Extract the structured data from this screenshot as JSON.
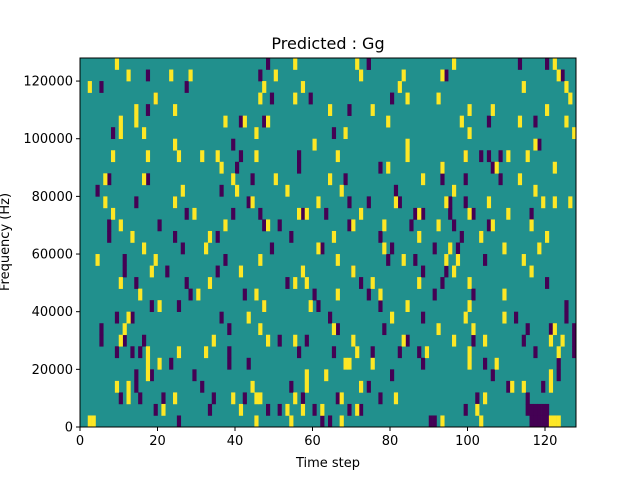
{
  "chart_data": {
    "type": "heatmap",
    "title": "Predicted : Gg",
    "xlabel": "Time step",
    "ylabel": "Frequency (Hz)",
    "xlim": [
      0,
      128
    ],
    "ylim": [
      0,
      128000
    ],
    "x_ticks": [
      0,
      20,
      40,
      60,
      80,
      100,
      120
    ],
    "x_tick_labels": [
      "0",
      "20",
      "40",
      "60",
      "80",
      "100",
      "120"
    ],
    "y_ticks": [
      0,
      20000,
      40000,
      60000,
      80000,
      100000,
      120000
    ],
    "y_tick_labels": [
      "0",
      "20000",
      "40000",
      "60000",
      "80000",
      "100000",
      "120000"
    ],
    "grid": false,
    "legend": "none",
    "rows": 32,
    "cols": 128,
    "colors": {
      "background": "#21908d",
      "low": "#440154",
      "high": "#fde725"
    },
    "low_cells": [
      [
        0,
        25
      ],
      [
        0,
        62
      ],
      [
        0,
        64
      ],
      [
        0,
        90
      ],
      [
        0,
        91
      ],
      [
        0,
        116
      ],
      [
        0,
        117
      ],
      [
        0,
        118
      ],
      [
        0,
        119
      ],
      [
        0,
        120
      ],
      [
        1,
        19
      ],
      [
        1,
        33
      ],
      [
        1,
        48
      ],
      [
        1,
        51
      ],
      [
        1,
        60
      ],
      [
        1,
        69
      ],
      [
        1,
        72
      ],
      [
        1,
        99
      ],
      [
        1,
        115
      ],
      [
        1,
        116
      ],
      [
        1,
        117
      ],
      [
        1,
        118
      ],
      [
        1,
        119
      ],
      [
        1,
        120
      ],
      [
        2,
        10
      ],
      [
        2,
        15
      ],
      [
        2,
        21
      ],
      [
        2,
        34
      ],
      [
        2,
        42
      ],
      [
        2,
        57
      ],
      [
        2,
        66
      ],
      [
        2,
        77
      ],
      [
        2,
        102
      ],
      [
        2,
        115
      ],
      [
        3,
        14
      ],
      [
        3,
        31
      ],
      [
        3,
        54
      ],
      [
        3,
        74
      ],
      [
        3,
        110
      ],
      [
        3,
        119
      ],
      [
        4,
        14
      ],
      [
        4,
        18
      ],
      [
        4,
        29
      ],
      [
        4,
        80
      ],
      [
        4,
        106
      ],
      [
        4,
        123
      ],
      [
        5,
        23
      ],
      [
        5,
        38
      ],
      [
        5,
        43
      ],
      [
        5,
        88
      ],
      [
        5,
        104
      ],
      [
        5,
        123
      ],
      [
        6,
        9
      ],
      [
        6,
        13
      ],
      [
        6,
        15
      ],
      [
        6,
        38
      ],
      [
        6,
        56
      ],
      [
        6,
        65
      ],
      [
        6,
        75
      ],
      [
        6,
        82
      ],
      [
        6,
        87
      ],
      [
        6,
        117
      ],
      [
        6,
        127
      ],
      [
        7,
        5
      ],
      [
        7,
        11
      ],
      [
        7,
        16
      ],
      [
        7,
        51
      ],
      [
        7,
        58
      ],
      [
        7,
        84
      ],
      [
        7,
        101
      ],
      [
        7,
        114
      ],
      [
        7,
        127
      ],
      [
        8,
        5
      ],
      [
        8,
        38
      ],
      [
        8,
        66
      ],
      [
        8,
        78
      ],
      [
        8,
        115
      ],
      [
        8,
        121
      ],
      [
        8,
        127
      ],
      [
        9,
        9
      ],
      [
        9,
        13
      ],
      [
        9,
        36
      ],
      [
        9,
        64
      ],
      [
        9,
        88
      ],
      [
        9,
        112
      ],
      [
        9,
        125
      ],
      [
        10,
        18
      ],
      [
        10,
        25
      ],
      [
        10,
        47
      ],
      [
        10,
        61
      ],
      [
        10,
        77
      ],
      [
        10,
        125
      ],
      [
        11,
        28
      ],
      [
        11,
        42
      ],
      [
        11,
        60
      ],
      [
        11,
        74
      ],
      [
        11,
        91
      ],
      [
        11,
        101
      ],
      [
        12,
        14
      ],
      [
        12,
        27
      ],
      [
        12,
        53
      ],
      [
        12,
        72
      ],
      [
        12,
        93
      ],
      [
        12,
        120
      ],
      [
        13,
        11
      ],
      [
        13,
        22
      ],
      [
        13,
        35
      ],
      [
        13,
        70
      ],
      [
        13,
        88
      ],
      [
        13,
        94
      ],
      [
        14,
        11
      ],
      [
        14,
        37
      ],
      [
        14,
        79
      ],
      [
        14,
        86
      ],
      [
        14,
        104
      ],
      [
        15,
        26
      ],
      [
        15,
        49
      ],
      [
        15,
        62
      ],
      [
        15,
        80
      ],
      [
        15,
        91
      ],
      [
        15,
        97
      ],
      [
        16,
        7
      ],
      [
        16,
        24
      ],
      [
        16,
        35
      ],
      [
        16,
        54
      ],
      [
        16,
        77
      ],
      [
        16,
        98
      ],
      [
        17,
        7
      ],
      [
        17,
        20
      ],
      [
        17,
        47
      ],
      [
        17,
        51
      ],
      [
        17,
        69
      ],
      [
        17,
        85
      ],
      [
        17,
        96
      ],
      [
        17,
        105
      ],
      [
        18,
        27
      ],
      [
        18,
        39
      ],
      [
        18,
        46
      ],
      [
        18,
        57
      ],
      [
        18,
        63
      ],
      [
        18,
        86
      ],
      [
        18,
        88
      ],
      [
        18,
        95
      ],
      [
        18,
        101
      ],
      [
        18,
        116
      ],
      [
        19,
        14
      ],
      [
        19,
        24
      ],
      [
        19,
        43
      ],
      [
        19,
        69
      ],
      [
        19,
        74
      ],
      [
        19,
        82
      ],
      [
        19,
        95
      ],
      [
        19,
        99
      ],
      [
        20,
        4
      ],
      [
        20,
        36
      ],
      [
        20,
        81
      ],
      [
        21,
        7
      ],
      [
        21,
        17
      ],
      [
        21,
        44
      ],
      [
        21,
        68
      ],
      [
        21,
        93
      ],
      [
        21,
        99
      ],
      [
        21,
        108
      ],
      [
        22,
        40
      ],
      [
        22,
        56
      ],
      [
        22,
        77
      ],
      [
        22,
        93
      ],
      [
        22,
        106
      ],
      [
        23,
        41
      ],
      [
        23,
        56
      ],
      [
        23,
        99
      ],
      [
        23,
        103
      ],
      [
        23,
        105
      ],
      [
        23,
        108
      ],
      [
        24,
        39
      ],
      [
        24,
        118
      ],
      [
        25,
        8
      ],
      [
        25,
        65
      ],
      [
        26,
        41
      ],
      [
        26,
        47
      ],
      [
        26,
        105
      ],
      [
        26,
        117
      ],
      [
        27,
        17
      ],
      [
        27,
        69
      ],
      [
        28,
        19
      ],
      [
        28,
        49
      ],
      [
        28,
        59
      ],
      [
        28,
        80
      ],
      [
        29,
        5
      ],
      [
        29,
        27
      ],
      [
        30,
        17
      ],
      [
        30,
        46
      ],
      [
        30,
        94
      ],
      [
        30,
        124
      ],
      [
        31,
        48
      ],
      [
        31,
        74
      ],
      [
        31,
        74
      ],
      [
        31,
        113
      ],
      [
        31,
        120
      ]
    ],
    "high_cells": [
      [
        0,
        2
      ],
      [
        0,
        3
      ],
      [
        0,
        45
      ],
      [
        0,
        54
      ],
      [
        0,
        67
      ],
      [
        0,
        93
      ],
      [
        0,
        103
      ],
      [
        0,
        121
      ],
      [
        0,
        122
      ],
      [
        0,
        123
      ],
      [
        1,
        21
      ],
      [
        1,
        41
      ],
      [
        1,
        53
      ],
      [
        1,
        57
      ],
      [
        1,
        62
      ],
      [
        1,
        71
      ],
      [
        1,
        102
      ],
      [
        2,
        12
      ],
      [
        2,
        24
      ],
      [
        2,
        39
      ],
      [
        2,
        45
      ],
      [
        2,
        46
      ],
      [
        2,
        55
      ],
      [
        2,
        67
      ],
      [
        2,
        81
      ],
      [
        2,
        104
      ],
      [
        3,
        9
      ],
      [
        3,
        12
      ],
      [
        3,
        44
      ],
      [
        3,
        58
      ],
      [
        3,
        72
      ],
      [
        3,
        111
      ],
      [
        3,
        114
      ],
      [
        3,
        121
      ],
      [
        4,
        17
      ],
      [
        4,
        58
      ],
      [
        4,
        63
      ],
      [
        4,
        121
      ],
      [
        5,
        17
      ],
      [
        5,
        20
      ],
      [
        5,
        68
      ],
      [
        5,
        69
      ],
      [
        5,
        75
      ],
      [
        5,
        100
      ],
      [
        5,
        107
      ],
      [
        6,
        17
      ],
      [
        6,
        25
      ],
      [
        6,
        32
      ],
      [
        6,
        71
      ],
      [
        6,
        89
      ],
      [
        6,
        100
      ],
      [
        6,
        123
      ],
      [
        7,
        10
      ],
      [
        7,
        34
      ],
      [
        7,
        48
      ],
      [
        7,
        55
      ],
      [
        7,
        70
      ],
      [
        7,
        83
      ],
      [
        7,
        96
      ],
      [
        7,
        104
      ],
      [
        7,
        121
      ],
      [
        7,
        124
      ],
      [
        8,
        11
      ],
      [
        8,
        46
      ],
      [
        8,
        65
      ],
      [
        8,
        92
      ],
      [
        8,
        101
      ],
      [
        8,
        122
      ],
      [
        9,
        12
      ],
      [
        9,
        43
      ],
      [
        9,
        80
      ],
      [
        9,
        99
      ],
      [
        9,
        109
      ],
      [
        10,
        20
      ],
      [
        10,
        47
      ],
      [
        10,
        59
      ],
      [
        10,
        84
      ],
      [
        10,
        100
      ],
      [
        11,
        15
      ],
      [
        11,
        30
      ],
      [
        11,
        45
      ],
      [
        11,
        66
      ],
      [
        11,
        77
      ],
      [
        11,
        109
      ],
      [
        12,
        10
      ],
      [
        12,
        33
      ],
      [
        12,
        55
      ],
      [
        12,
        58
      ],
      [
        12,
        75
      ],
      [
        12,
        87
      ],
      [
        12,
        100
      ],
      [
        13,
        18
      ],
      [
        13,
        41
      ],
      [
        13,
        57
      ],
      [
        13,
        70
      ],
      [
        13,
        96
      ],
      [
        13,
        116
      ],
      [
        14,
        4
      ],
      [
        14,
        19
      ],
      [
        14,
        46
      ],
      [
        14,
        66
      ],
      [
        14,
        83
      ],
      [
        14,
        94
      ],
      [
        14,
        97
      ],
      [
        14,
        114
      ],
      [
        15,
        16
      ],
      [
        15,
        32
      ],
      [
        15,
        61
      ],
      [
        15,
        78
      ],
      [
        15,
        95
      ],
      [
        15,
        109
      ],
      [
        15,
        118
      ],
      [
        16,
        13
      ],
      [
        16,
        33
      ],
      [
        16,
        65
      ],
      [
        16,
        87
      ],
      [
        16,
        103
      ],
      [
        16,
        120
      ],
      [
        17,
        10
      ],
      [
        17,
        37
      ],
      [
        17,
        48
      ],
      [
        17,
        70
      ],
      [
        17,
        78
      ],
      [
        17,
        92
      ],
      [
        17,
        106
      ],
      [
        17,
        116
      ],
      [
        18,
        8
      ],
      [
        18,
        29
      ],
      [
        18,
        56
      ],
      [
        18,
        58
      ],
      [
        18,
        72
      ],
      [
        18,
        87
      ],
      [
        18,
        100
      ],
      [
        18,
        110
      ],
      [
        19,
        6
      ],
      [
        19,
        24
      ],
      [
        19,
        44
      ],
      [
        19,
        61
      ],
      [
        19,
        81
      ],
      [
        19,
        94
      ],
      [
        19,
        105
      ],
      [
        19,
        119
      ],
      [
        19,
        122
      ],
      [
        19,
        126
      ],
      [
        20,
        26
      ],
      [
        20,
        40
      ],
      [
        20,
        53
      ],
      [
        20,
        67
      ],
      [
        20,
        96
      ],
      [
        20,
        117
      ],
      [
        21,
        6
      ],
      [
        21,
        16
      ],
      [
        21,
        39
      ],
      [
        21,
        50
      ],
      [
        21,
        64
      ],
      [
        21,
        88
      ],
      [
        21,
        113
      ],
      [
        22,
        36
      ],
      [
        22,
        79
      ],
      [
        22,
        93
      ],
      [
        22,
        107
      ],
      [
        22,
        122
      ],
      [
        23,
        8
      ],
      [
        23,
        17
      ],
      [
        23,
        25
      ],
      [
        23,
        31
      ],
      [
        23,
        35
      ],
      [
        23,
        45
      ],
      [
        23,
        66
      ],
      [
        23,
        84
      ],
      [
        23,
        99
      ],
      [
        23,
        110
      ],
      [
        23,
        115
      ],
      [
        24,
        24
      ],
      [
        24,
        60
      ],
      [
        24,
        84
      ],
      [
        24,
        117
      ],
      [
        25,
        10
      ],
      [
        25,
        16
      ],
      [
        25,
        45
      ],
      [
        25,
        68
      ],
      [
        25,
        100
      ],
      [
        25,
        127
      ],
      [
        26,
        10
      ],
      [
        26,
        14
      ],
      [
        26,
        37
      ],
      [
        26,
        42
      ],
      [
        26,
        48
      ],
      [
        26,
        79
      ],
      [
        26,
        98
      ],
      [
        26,
        113
      ],
      [
        26,
        125
      ],
      [
        27,
        14
      ],
      [
        27,
        24
      ],
      [
        27,
        64
      ],
      [
        27,
        75
      ],
      [
        27,
        100
      ],
      [
        27,
        106
      ],
      [
        27,
        120
      ],
      [
        28,
        19
      ],
      [
        28,
        46
      ],
      [
        28,
        55
      ],
      [
        28,
        84
      ],
      [
        28,
        92
      ],
      [
        28,
        126
      ],
      [
        29,
        2
      ],
      [
        29,
        47
      ],
      [
        29,
        57
      ],
      [
        29,
        82
      ],
      [
        29,
        114
      ],
      [
        29,
        125
      ],
      [
        30,
        12
      ],
      [
        30,
        23
      ],
      [
        30,
        28
      ],
      [
        30,
        50
      ],
      [
        30,
        72
      ],
      [
        30,
        83
      ],
      [
        30,
        93
      ],
      [
        30,
        123
      ],
      [
        31,
        9
      ],
      [
        31,
        55
      ],
      [
        31,
        71
      ],
      [
        31,
        96
      ],
      [
        31,
        122
      ]
    ]
  }
}
